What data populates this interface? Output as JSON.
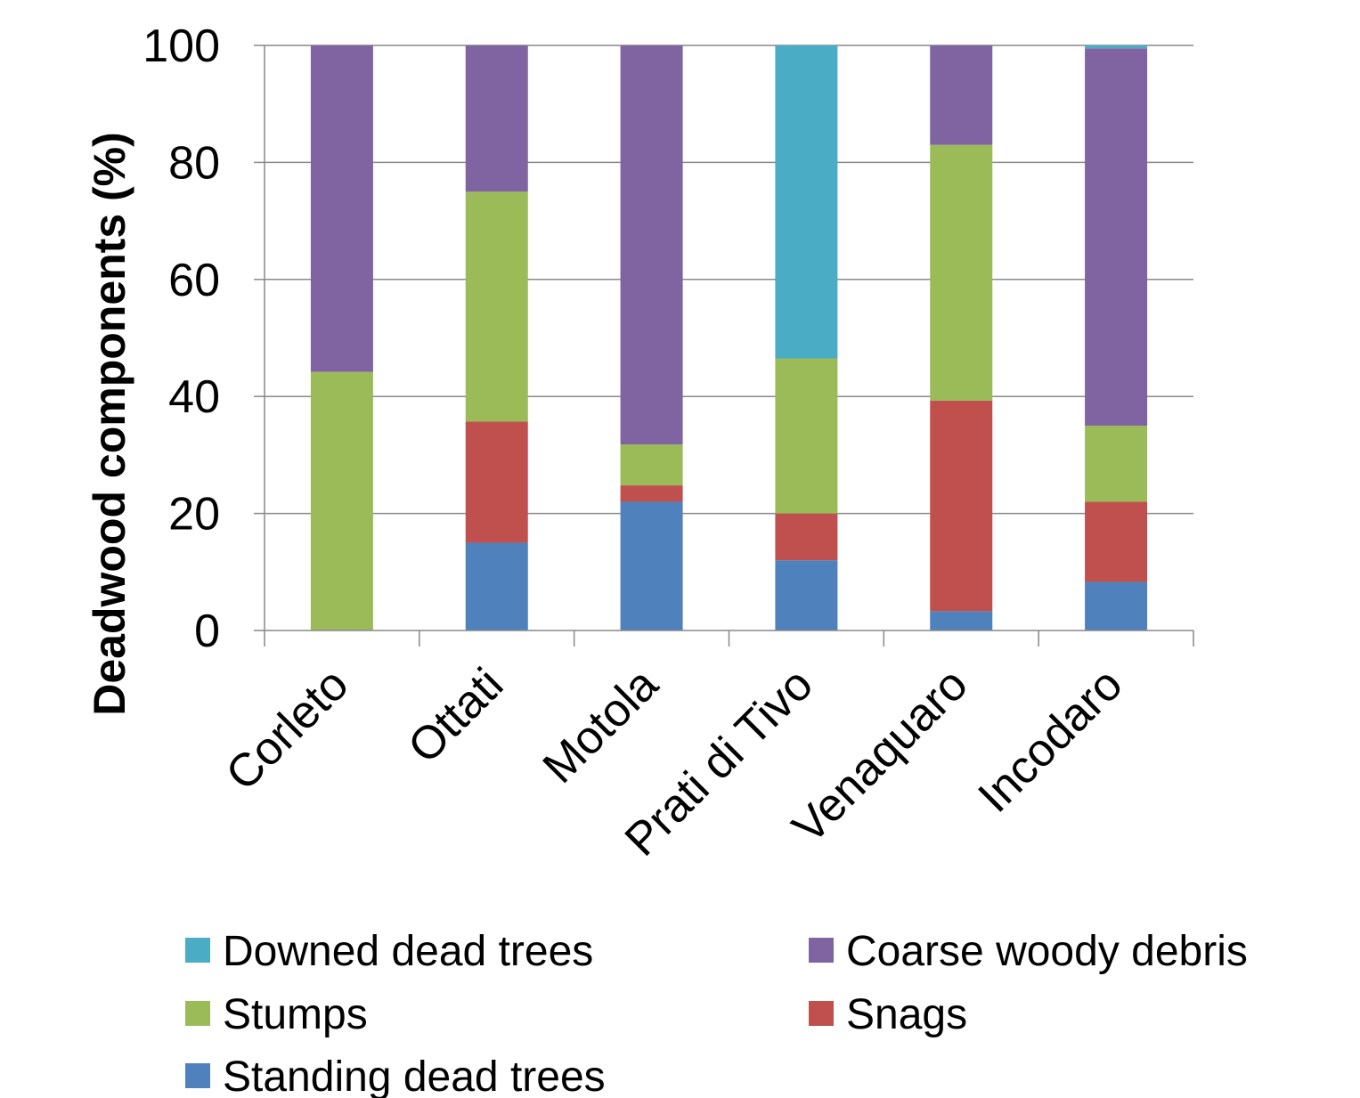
{
  "chart_data": {
    "type": "bar",
    "stacked": true,
    "title": "",
    "xlabel": "",
    "ylabel": "Deadwood components (%)",
    "ylim": [
      0,
      100
    ],
    "yticks": [
      0,
      20,
      40,
      60,
      80,
      100
    ],
    "grid": true,
    "legend_position": "bottom",
    "categories": [
      "Corleto",
      "Ottati",
      "Motola",
      "Prati di Tivo",
      "Venaquaro",
      "Incodaro"
    ],
    "series": [
      {
        "name": "Standing dead trees",
        "color": "#4F81BD",
        "values": [
          0,
          15,
          22,
          12,
          3.3,
          8.3
        ]
      },
      {
        "name": "Snags",
        "color": "#C0504D",
        "values": [
          0,
          20.7,
          2.8,
          8,
          36,
          13.7
        ]
      },
      {
        "name": "Stumps",
        "color": "#9BBB59",
        "values": [
          44.2,
          39.3,
          7,
          26.5,
          43.7,
          13
        ]
      },
      {
        "name": "Coarse woody debris",
        "color": "#8064A2",
        "values": [
          55.8,
          25,
          68.2,
          0,
          17,
          64.5
        ]
      },
      {
        "name": "Downed dead trees",
        "color": "#4BACC6",
        "values": [
          0,
          0,
          0,
          53.5,
          0,
          0.5
        ]
      }
    ],
    "legend_order": [
      "Downed dead trees",
      "Coarse woody debris",
      "Stumps",
      "Snags",
      "Standing dead trees"
    ]
  }
}
